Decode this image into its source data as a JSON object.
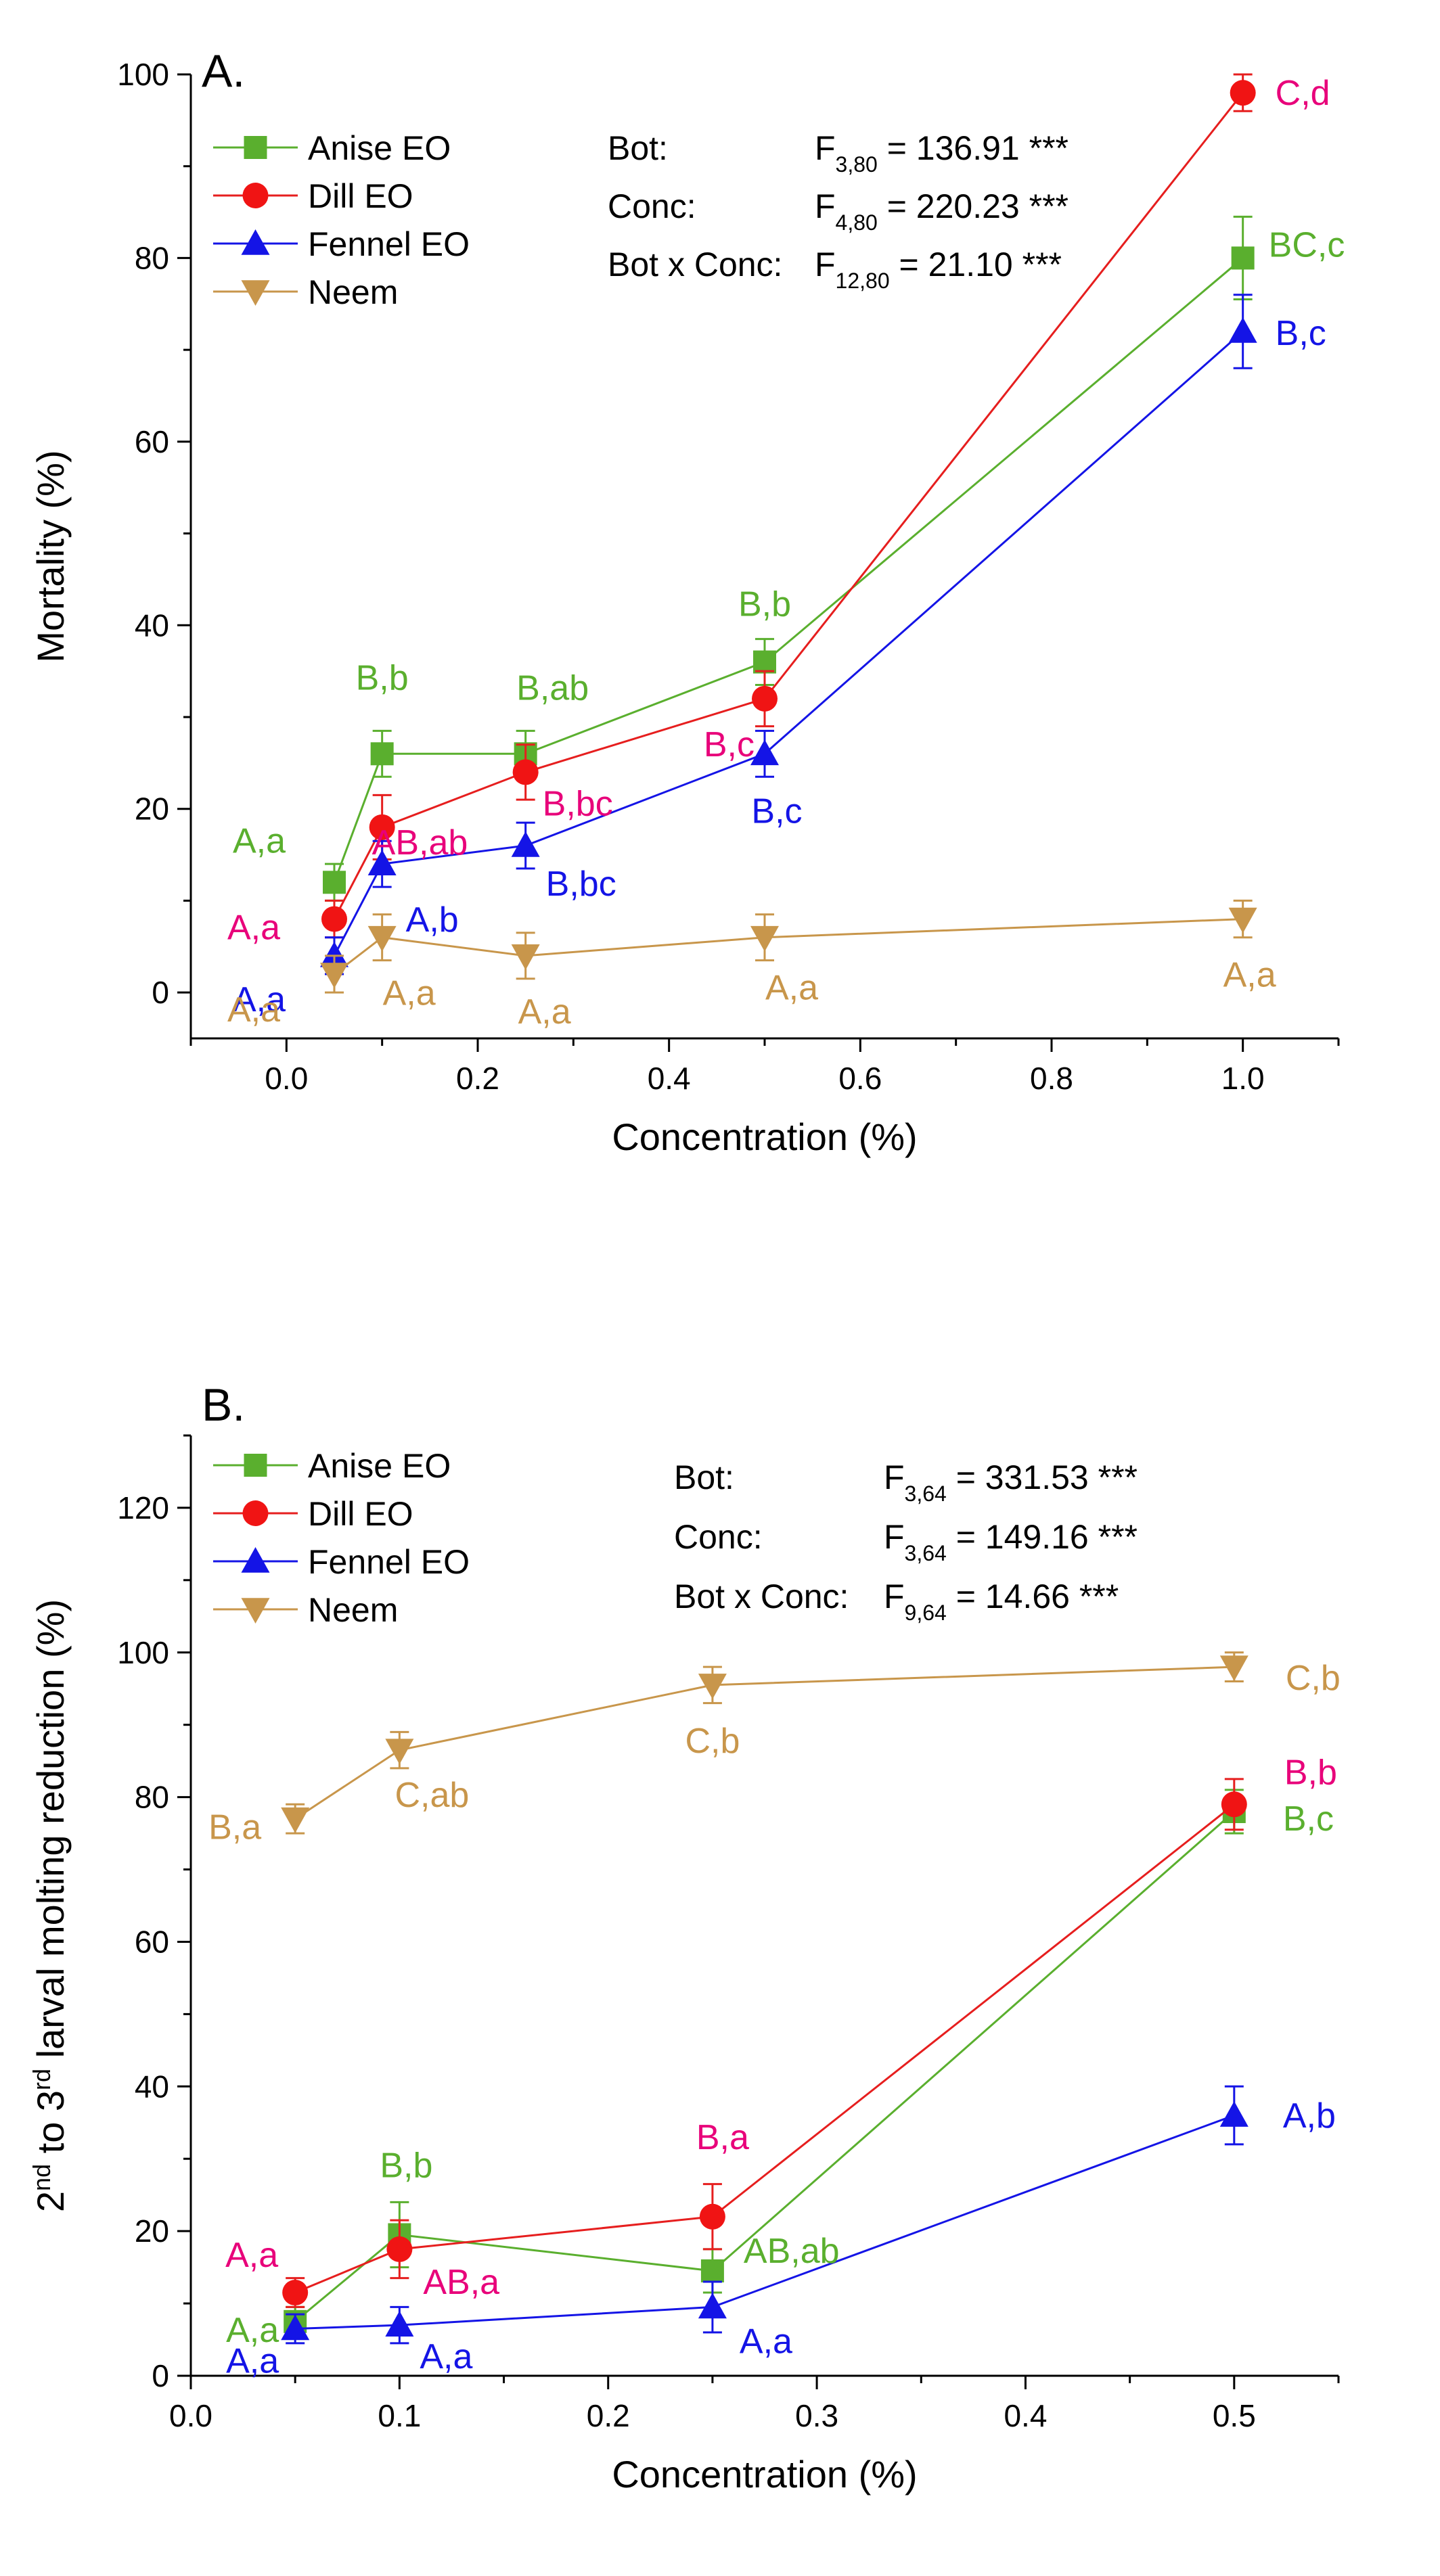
{
  "chart_data": [
    {
      "type": "line",
      "panel": "A.",
      "xlabel": "Concentration (%)",
      "ylabel": "Mortality (%)",
      "xlim": [
        -0.1,
        1.1
      ],
      "ylim": [
        -5,
        100
      ],
      "xticks": [
        0.0,
        0.2,
        0.4,
        0.6,
        0.8,
        1.0
      ],
      "xtick_labels": [
        "0.0",
        "0.2",
        "0.4",
        "0.6",
        "0.8",
        "1.0"
      ],
      "yticks": [
        0,
        20,
        40,
        60,
        80,
        100
      ],
      "ytick_labels": [
        "0",
        "20",
        "40",
        "60",
        "80",
        "100"
      ],
      "legend_position": "top-left",
      "stats": [
        {
          "label": "Bot:",
          "f": "F",
          "sub": "3,80",
          "value": "= 136.91 ***"
        },
        {
          "label": "Conc:",
          "f": "F",
          "sub": "4,80",
          "value": "= 220.23 ***"
        },
        {
          "label": "Bot x Conc:",
          "f": "F",
          "sub": "12,80",
          "value": "=  21.10 ***"
        }
      ],
      "series": [
        {
          "name": "Anise EO",
          "color": "#5aaf2e",
          "marker": "square",
          "x": [
            0.05,
            0.1,
            0.25,
            0.5,
            1.0
          ],
          "y": [
            12,
            26,
            26,
            36,
            80
          ],
          "err": [
            2,
            2.5,
            2.5,
            2.5,
            4.5
          ],
          "labels": [
            "A,a",
            "B,b",
            "B,ab",
            "B,b",
            "BC,c"
          ]
        },
        {
          "name": "Dill EO",
          "color": "#e8007a",
          "line_color": "#e61e1e",
          "marker_color": "#f01414",
          "marker": "circle",
          "x": [
            0.05,
            0.1,
            0.25,
            0.5,
            1.0
          ],
          "y": [
            8,
            18,
            24,
            32,
            98
          ],
          "err": [
            2,
            3.5,
            3,
            3,
            2
          ],
          "labels": [
            "A,a",
            "AB,ab",
            "B,bc",
            "B,c",
            "C,d"
          ]
        },
        {
          "name": "Fennel EO",
          "color": "#1414e6",
          "marker": "triangle-up",
          "x": [
            0.05,
            0.1,
            0.25,
            0.5,
            1.0
          ],
          "y": [
            4,
            14,
            16,
            26,
            72
          ],
          "err": [
            2,
            2.5,
            2.5,
            2.5,
            4
          ],
          "labels": [
            "A,a",
            "A,b",
            "B,bc",
            "B,c",
            "B,c"
          ]
        },
        {
          "name": "Neem",
          "color": "#c8964b",
          "marker": "triangle-down",
          "x": [
            0.05,
            0.1,
            0.25,
            0.5,
            1.0
          ],
          "y": [
            2,
            6,
            4,
            6,
            8
          ],
          "err": [
            2,
            2.5,
            2.5,
            2.5,
            2
          ],
          "labels": [
            "A,a",
            "A,a",
            "A,a",
            "A,a",
            "A,a"
          ]
        }
      ]
    },
    {
      "type": "line",
      "panel": "B.",
      "xlabel": "Concentration (%)",
      "ylabel": "2nd to 3rd larval molting reduction (%)",
      "ylabel_parts": [
        "2",
        "nd",
        " to 3",
        "rd",
        " larval molting reduction (%)"
      ],
      "xlim": [
        0.0,
        0.55
      ],
      "ylim": [
        0,
        130
      ],
      "xticks": [
        0.0,
        0.1,
        0.2,
        0.3,
        0.4,
        0.5
      ],
      "xtick_labels": [
        "0.0",
        "0.1",
        "0.2",
        "0.3",
        "0.4",
        "0.5"
      ],
      "yticks": [
        0,
        20,
        40,
        60,
        80,
        100,
        120
      ],
      "ytick_labels": [
        "0",
        "20",
        "40",
        "60",
        "80",
        "100",
        "120"
      ],
      "legend_position": "top-left",
      "stats": [
        {
          "label": "Bot:",
          "f": "F",
          "sub": "3,64",
          "value": "=  331.53 ***"
        },
        {
          "label": "Conc:",
          "f": "F",
          "sub": "3,64",
          "value": "=  149.16 ***"
        },
        {
          "label": "Bot x Conc:",
          "f": "F",
          "sub": "9,64",
          "value": "=     14.66 ***"
        }
      ],
      "series": [
        {
          "name": "Anise EO",
          "color": "#5aaf2e",
          "marker": "square",
          "x": [
            0.05,
            0.1,
            0.25,
            0.5
          ],
          "y": [
            7.5,
            19.5,
            14.5,
            78
          ],
          "err": [
            2,
            4.5,
            3,
            3
          ],
          "labels": [
            "A,a",
            "B,b",
            "AB,ab",
            "B,c"
          ]
        },
        {
          "name": "Dill EO",
          "color": "#e8007a",
          "line_color": "#e61e1e",
          "marker_color": "#f01414",
          "marker": "circle",
          "x": [
            0.05,
            0.1,
            0.25,
            0.5
          ],
          "y": [
            11.5,
            17.5,
            22,
            79
          ],
          "err": [
            2,
            4,
            4.5,
            3.5
          ],
          "labels": [
            "A,a",
            "AB,a",
            "B,a",
            "B,b"
          ]
        },
        {
          "name": "Fennel EO",
          "color": "#1414e6",
          "marker": "triangle-up",
          "x": [
            0.05,
            0.1,
            0.25,
            0.5
          ],
          "y": [
            6.5,
            7,
            9.5,
            36
          ],
          "err": [
            2,
            2.5,
            3.5,
            4
          ],
          "labels": [
            "A,a",
            "A,a",
            "A,a",
            "A,b"
          ]
        },
        {
          "name": "Neem",
          "color": "#c8964b",
          "marker": "triangle-down",
          "x": [
            0.05,
            0.1,
            0.25,
            0.5
          ],
          "y": [
            77,
            86.5,
            95.5,
            98
          ],
          "err": [
            2,
            2.5,
            2.5,
            2
          ],
          "labels": [
            "B,a",
            "C,ab",
            "C,b",
            "C,b"
          ]
        }
      ]
    }
  ]
}
